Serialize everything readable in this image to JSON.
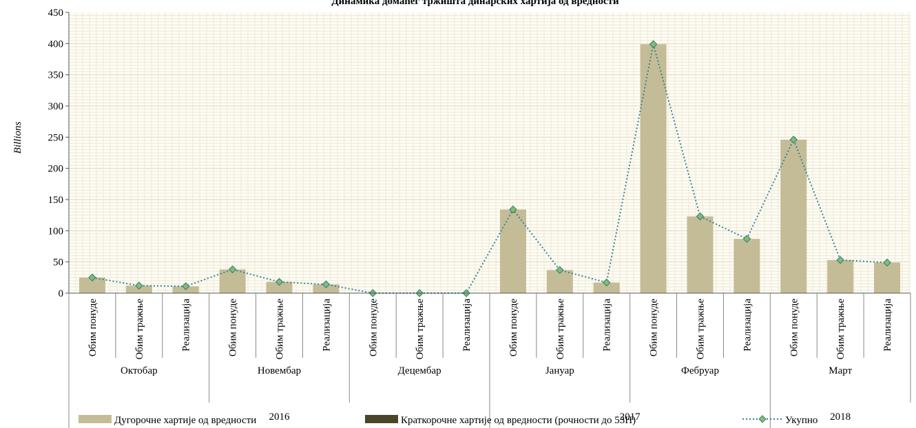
{
  "chart_data": {
    "type": "bar",
    "title": "Динамика домаћег тржишта динарских хартија од вредности",
    "ylabel": "Billions",
    "ylim": [
      0,
      450
    ],
    "yticks": [
      0,
      50,
      100,
      150,
      200,
      250,
      300,
      350,
      400,
      450
    ],
    "grid": true,
    "legend_position": "bottom",
    "categories": [
      "Обим понуде",
      "Обим тражње",
      "Реализација",
      "Обим понуде",
      "Обим тражње",
      "Реализација",
      "Обим понуде",
      "Обим тражње",
      "Реализација",
      "Обим понуде",
      "Обим тражње",
      "Реализација",
      "Обим понуде",
      "Обим тражње",
      "Реализација",
      "Обим понуде",
      "Обим тражње",
      "Реализација"
    ],
    "months": [
      {
        "label": "Октобар",
        "start": 0,
        "count": 3
      },
      {
        "label": "Новембар",
        "start": 3,
        "count": 3
      },
      {
        "label": "Децембар",
        "start": 6,
        "count": 3
      },
      {
        "label": "Јануар",
        "start": 9,
        "count": 3
      },
      {
        "label": "Фебруар",
        "start": 12,
        "count": 3
      },
      {
        "label": "Март",
        "start": 15,
        "count": 3
      }
    ],
    "years": [
      {
        "label": "2016",
        "start": 0,
        "count": 9
      },
      {
        "label": "2017",
        "start": 9,
        "count": 6
      },
      {
        "label": "2018",
        "start": 15,
        "count": 3
      }
    ],
    "series": [
      {
        "name": "Дугорочне хартије од вредности",
        "kind": "bar",
        "color": "#c4bc96",
        "values": [
          25,
          12,
          11,
          38,
          18,
          14,
          0,
          0,
          0,
          134,
          37,
          17,
          399,
          123,
          87,
          246,
          53,
          49
        ]
      },
      {
        "name": "Краткорочне хартије од вредности (рочности до 53Н)",
        "kind": "bar",
        "color": "#4a4526",
        "values": [
          0,
          0,
          0,
          0,
          0,
          0,
          0,
          0,
          0,
          0,
          0,
          0,
          0,
          0,
          0,
          0,
          0,
          0
        ]
      },
      {
        "name": "Укупно",
        "kind": "line",
        "color": "#31849b",
        "marker_color": "#8fbc5a",
        "values": [
          25,
          12,
          11,
          38,
          18,
          14,
          0,
          0,
          0,
          134,
          37,
          17,
          399,
          123,
          87,
          246,
          53,
          49
        ]
      }
    ]
  }
}
